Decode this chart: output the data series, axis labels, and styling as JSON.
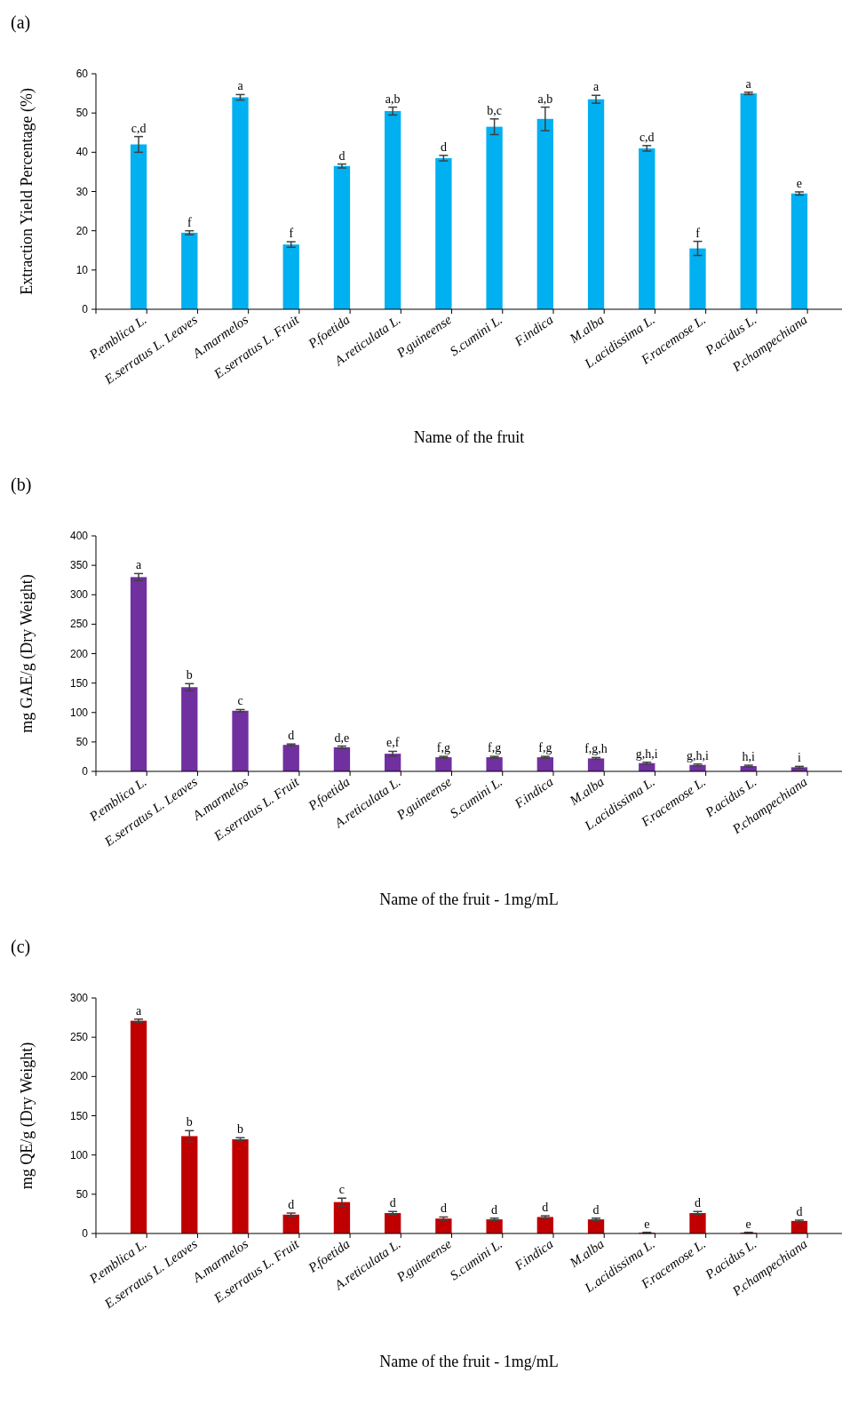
{
  "chart_data": [
    {
      "type": "bar",
      "annotations": [
        "(a)"
      ],
      "xlabel": "Name of the fruit",
      "ylabel": "Extraction Yield Percentage (%)",
      "categories": [
        "P.emblica L.",
        "E.serratus L. Leaves",
        "A.marmelos",
        "E.serratus L. Fruit",
        "P.foetida",
        "A.reticulata L.",
        "P.guineense",
        "S.cumini L.",
        "F.indica",
        "M.alba",
        "L.acidissima L.",
        "F.racemose L.",
        "P.acidus L.",
        "P.champechiana"
      ],
      "values": [
        42,
        19.5,
        54,
        16.5,
        36.5,
        50.5,
        38.5,
        46.5,
        48.5,
        53.5,
        41,
        15.5,
        55,
        29.5
      ],
      "errors": [
        2,
        0.5,
        0.7,
        0.7,
        0.5,
        1,
        0.7,
        2,
        3,
        1,
        0.7,
        1.8,
        0.3,
        0.4
      ],
      "value_labels": [
        "c,d",
        "f",
        "a",
        "f",
        "d",
        "a,b",
        "d",
        "b,c",
        "a,b",
        "a",
        "c,d",
        "f",
        "a",
        "e"
      ],
      "color": "#00b0f0",
      "ylim": [
        0,
        60
      ],
      "yticks": [
        0,
        10,
        20,
        30,
        40,
        50,
        60
      ]
    },
    {
      "type": "bar",
      "annotations": [
        "(b)"
      ],
      "xlabel": "Name of the fruit - 1mg/mL",
      "ylabel": "mg GAE/g (Dry Weight)",
      "categories": [
        "P.emblica L.",
        "E.serratus L. Leaves",
        "A.marmelos",
        "E.serratus L. Fruit",
        "P.foetida",
        "A.reticulata L.",
        "P.guineense",
        "S.cumini L.",
        "F.indica",
        "M.alba",
        "L.acidissima L.",
        "F.racemose L.",
        "P.acidus L.",
        "P.champechiana"
      ],
      "values": [
        330,
        143,
        103,
        45,
        41,
        30,
        24,
        24,
        24,
        22,
        14,
        11,
        9,
        7
      ],
      "errors": [
        6,
        6,
        2,
        1.5,
        2,
        4,
        1.5,
        1.5,
        1.5,
        1.5,
        1.5,
        1.5,
        1.5,
        1.5
      ],
      "value_labels": [
        "a",
        "b",
        "c",
        "d",
        "d,e",
        "e,f",
        "f,g",
        "f,g",
        "f,g",
        "f,g,h",
        "g,h,i",
        "g,h,i",
        "h,i",
        "i"
      ],
      "color": "#7030a0",
      "ylim": [
        0,
        400
      ],
      "yticks": [
        0,
        50,
        100,
        150,
        200,
        250,
        300,
        350,
        400
      ]
    },
    {
      "type": "bar",
      "annotations": [
        "(c)"
      ],
      "xlabel": "Name of the fruit - 1mg/mL",
      "ylabel": "mg QE/g (Dry Weight)",
      "categories": [
        "P.emblica L.",
        "E.serratus L. Leaves",
        "A.marmelos",
        "E.serratus L. Fruit",
        "P.foetida",
        "A.reticulata L.",
        "P.guineense",
        "S.cumini L.",
        "F.indica",
        "M.alba",
        "L.acidissima L.",
        "F.racemose L.",
        "P.acidus L.",
        "P.champechiana"
      ],
      "values": [
        271,
        124,
        120,
        24,
        40,
        26,
        19,
        18,
        21,
        18,
        1,
        26,
        1,
        16
      ],
      "errors": [
        2,
        7,
        2,
        2,
        5,
        2,
        2,
        1.5,
        1.5,
        1.5,
        0.5,
        2,
        0.5,
        1
      ],
      "value_labels": [
        "a",
        "b",
        "b",
        "d",
        "c",
        "d",
        "d",
        "d",
        "d",
        "d",
        "e",
        "d",
        "e",
        "d"
      ],
      "color": "#c00000",
      "ylim": [
        0,
        300
      ],
      "yticks": [
        0,
        50,
        100,
        150,
        200,
        250,
        300
      ]
    }
  ]
}
